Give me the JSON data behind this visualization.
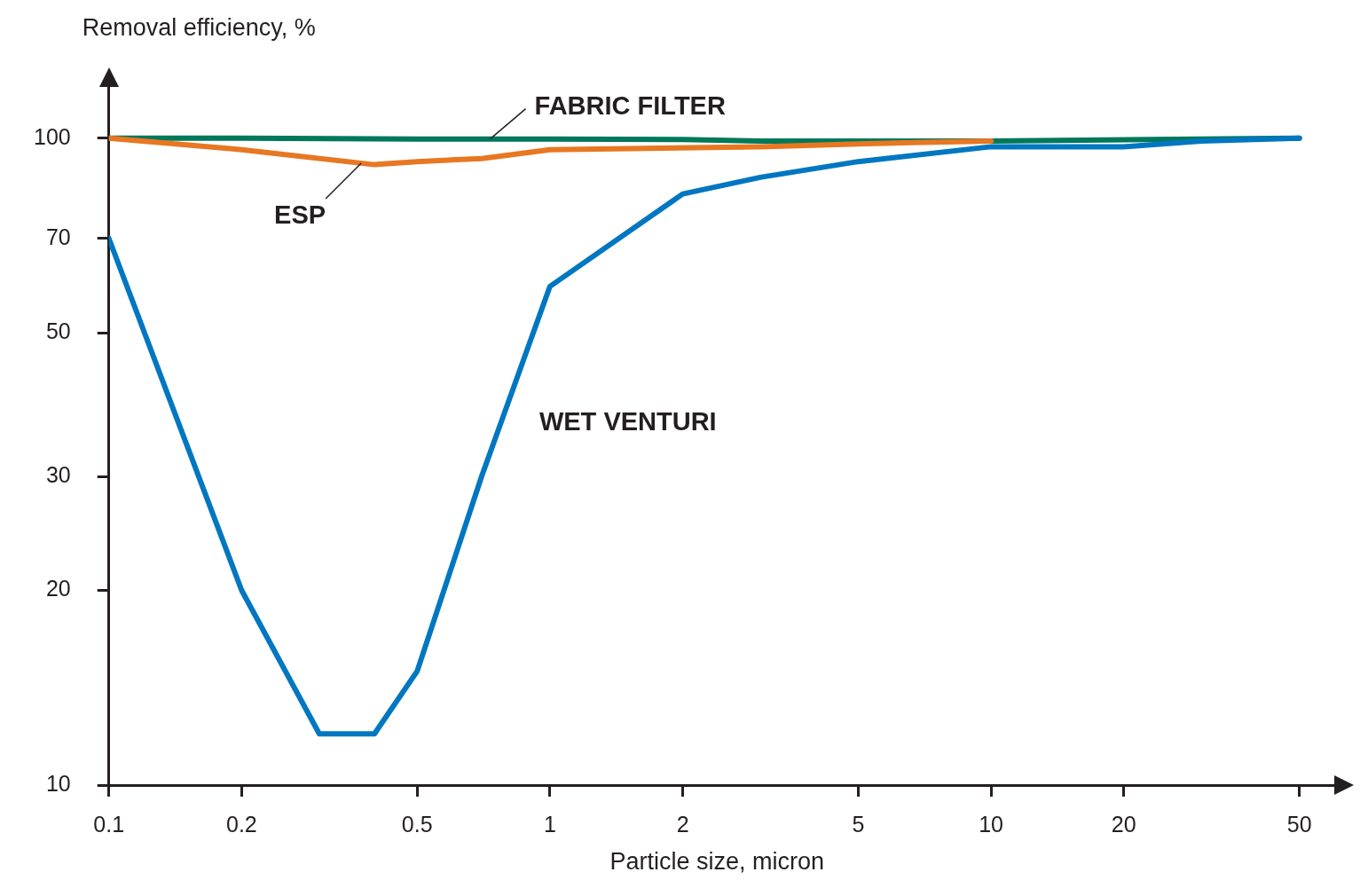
{
  "chart_data": {
    "type": "line",
    "xlabel": "Particle size, micron",
    "ylabel": "Removal efficiency, %",
    "log": "xy",
    "xlim": [
      0.1,
      60
    ],
    "ylim": [
      10,
      120
    ],
    "xticks": [
      0.1,
      0.2,
      0.5,
      1,
      2,
      5,
      10,
      20,
      50
    ],
    "yticks": [
      10,
      20,
      30,
      50,
      70,
      100
    ],
    "grid": false,
    "legend": false,
    "marker": "none",
    "line_style": "solid",
    "series": [
      {
        "name": "FABRIC FILTER",
        "color": "#00785a",
        "x": [
          0.1,
          0.2,
          0.5,
          1,
          2,
          3,
          5,
          10,
          50
        ],
        "values": [
          100,
          100,
          99.7,
          99.7,
          99.5,
          99,
          99,
          99,
          100
        ]
      },
      {
        "name": "ESP",
        "color": "#e87722",
        "x": [
          0.1,
          0.2,
          0.4,
          0.5,
          0.7,
          1,
          3,
          5,
          10
        ],
        "values": [
          100,
          96,
          91,
          92,
          93,
          96,
          97,
          98,
          99
        ]
      },
      {
        "name": "WET VENTURI",
        "color": "#0077c0",
        "x": [
          0.1,
          0.2,
          0.3,
          0.4,
          0.5,
          0.7,
          1,
          2,
          3,
          5,
          10,
          20,
          30,
          50
        ],
        "values": [
          70,
          20,
          12,
          12,
          15,
          30,
          59,
          82,
          87,
          92,
          97,
          97,
          99,
          100
        ]
      }
    ]
  }
}
